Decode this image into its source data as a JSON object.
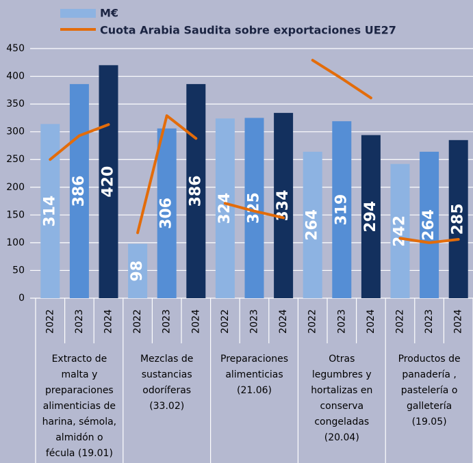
{
  "chart_data": {
    "type": "bar",
    "groups": [
      "Extracto de\nmalta y\npreparaciones\nalimenticias de\nharina, sémola,\nalmidón o\nfécula (19.01)",
      "Mezclas de\nsustancias\nodoríferas\n(33.02)",
      "Preparaciones\nalimenticias\n(21.06)",
      "Otras\nlegumbres y\nhortalizas en\nconserva\ncongeladas\n(20.04)",
      "Productos de\npanadería ,\npastelería o\ngalletería\n(19.05)"
    ],
    "categories": [
      "2022",
      "2023",
      "2024",
      "2022",
      "2023",
      "2024",
      "2022",
      "2023",
      "2024",
      "2022",
      "2023",
      "2024",
      "2022",
      "2023",
      "2024"
    ],
    "year_colors": [
      "#8db3e2",
      "#558ed5",
      "#13305e"
    ],
    "series": [
      {
        "name": "M€",
        "type": "bar",
        "color": "#8db3e2",
        "values": [
          314,
          386,
          420,
          98,
          306,
          386,
          324,
          325,
          334,
          264,
          319,
          294,
          242,
          264,
          285
        ]
      },
      {
        "name": "Cuota Arabia Saudita sobre exportaciones UE27",
        "type": "line",
        "color": "#e36c0a",
        "values": [
          250,
          293,
          313,
          118,
          329,
          288,
          171,
          157,
          145,
          429,
          396,
          361,
          108,
          100,
          106
        ]
      }
    ],
    "ylim": [
      0,
      450
    ],
    "yticks": [
      0,
      50,
      100,
      150,
      200,
      250,
      300,
      350,
      400,
      450
    ],
    "grid": true
  }
}
